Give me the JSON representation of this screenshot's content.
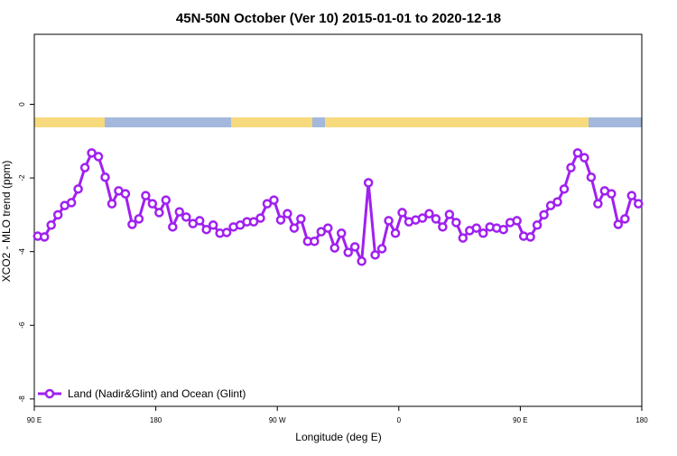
{
  "chart_data": {
    "type": "line",
    "title": "45N-50N October (Ver 10)   2015-01-01 to 2020-12-18",
    "x_label": "Longitude (deg E)",
    "y_label": "XCO2 - MLO trend (ppm)",
    "x": [
      92.5,
      97.5,
      102.5,
      107.5,
      112.5,
      117.5,
      122.5,
      127.5,
      132.5,
      137.5,
      142.5,
      147.5,
      152.5,
      157.5,
      162.5,
      167.5,
      172.5,
      177.5,
      182.5,
      187.5,
      192.5,
      197.5,
      202.5,
      207.5,
      212.5,
      217.5,
      222.5,
      227.5,
      232.5,
      237.5,
      242.5,
      247.5,
      252.5,
      257.5,
      262.5,
      267.5,
      272.5,
      277.5,
      282.5,
      287.5,
      292.5,
      297.5,
      302.5,
      307.5,
      312.5,
      317.5,
      322.5,
      327.5,
      332.5,
      337.5,
      342.5,
      347.5,
      352.5,
      357.5,
      362.5,
      367.5,
      372.5,
      377.5,
      382.5,
      387.5,
      392.5,
      397.5,
      402.5,
      407.5,
      412.5,
      417.5,
      422.5,
      427.5,
      432.5,
      437.5,
      442.5,
      447.5,
      452.5,
      457.5,
      462.5,
      467.5,
      472.5,
      477.5,
      482.5,
      487.5,
      492.5,
      497.5,
      502.5,
      507.5,
      512.5,
      517.5,
      522.5,
      527.5,
      532.5,
      537.5
    ],
    "series": [
      {
        "name": "Land (Nadir&Glint) and Ocean (Glint)",
        "color": "#a020f0",
        "values": [
          -3.58,
          -3.6,
          -3.28,
          -3.0,
          -2.75,
          -2.67,
          -2.3,
          -1.72,
          -1.32,
          -1.42,
          -1.98,
          -2.7,
          -2.35,
          -2.43,
          -3.26,
          -3.11,
          -2.48,
          -2.7,
          -2.94,
          -2.6,
          -3.33,
          -2.92,
          -3.06,
          -3.24,
          -3.16,
          -3.4,
          -3.28,
          -3.5,
          -3.48,
          -3.33,
          -3.28,
          -3.19,
          -3.19,
          -3.09,
          -2.7,
          -2.6,
          -3.14,
          -2.97,
          -3.36,
          -3.11,
          -3.72,
          -3.72,
          -3.46,
          -3.36,
          -3.9,
          -3.5,
          -4.02,
          -3.87,
          -4.26,
          -2.13,
          -4.09,
          -3.92,
          -3.16,
          -3.5,
          -2.94,
          -3.19,
          -3.14,
          -3.09,
          -2.97,
          -3.11,
          -3.33,
          -2.99,
          -3.21,
          -3.63,
          -3.43,
          -3.36,
          -3.5,
          -3.33,
          -3.36,
          -3.4,
          -3.21,
          -3.16,
          -3.58,
          -3.6,
          -3.28,
          -3.0,
          -2.75,
          -2.65,
          -2.3,
          -1.72,
          -1.32,
          -1.45,
          -1.98,
          -2.7,
          -2.35,
          -2.43,
          -3.26,
          -3.11,
          -2.48,
          -2.7
        ]
      }
    ],
    "xlim": [
      90,
      540
    ],
    "xticks": [
      {
        "value": 90,
        "label": "90 E"
      },
      {
        "value": 180,
        "label": "180"
      },
      {
        "value": 270,
        "label": "90 W"
      },
      {
        "value": 360,
        "label": "0"
      },
      {
        "value": 450,
        "label": "90 E"
      },
      {
        "value": 540,
        "label": "180"
      }
    ],
    "ylim": [
      -8.2,
      1.9
    ],
    "yticks": [
      0,
      -2,
      -4,
      -6,
      -8
    ],
    "legend": "bottom-left"
  }
}
